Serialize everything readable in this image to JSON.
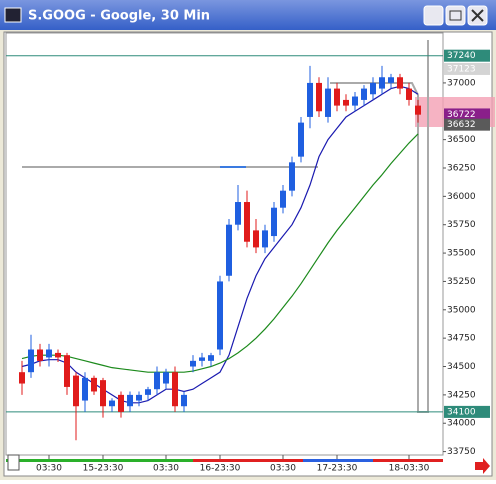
{
  "chart_data": {
    "type": "candlestick",
    "title": "S.GOOG - Google, 30 Min",
    "categories": [
      null,
      null,
      null,
      "03:30",
      null,
      null,
      null,
      null,
      null,
      "15-23:30",
      null,
      null,
      null,
      null,
      null,
      null,
      "03:30",
      null,
      null,
      null,
      null,
      null,
      "16-23:30",
      null,
      null,
      null,
      null,
      null,
      null,
      "03:30",
      null,
      null,
      null,
      null,
      null,
      "17-23:30",
      null,
      null,
      null,
      null,
      null,
      null,
      null,
      "18-03:30",
      null
    ],
    "open": [
      34450,
      34450,
      34650,
      34580,
      34620,
      34600,
      34420,
      34200,
      34400,
      34380,
      34150,
      34250,
      34150,
      34200,
      34250,
      34300,
      34350,
      34450,
      34150,
      34500,
      34550,
      34550,
      34650,
      35300,
      35750,
      35950,
      35700,
      35550,
      35650,
      35900,
      36050,
      36350,
      36700,
      37000,
      36700,
      36950,
      36850,
      36800,
      36850,
      36900,
      36950,
      37000,
      37050,
      36950,
      36800
    ],
    "high": [
      34550,
      34780,
      34700,
      34700,
      34650,
      34620,
      34450,
      34450,
      34420,
      34400,
      34220,
      34280,
      34280,
      34280,
      34320,
      34500,
      34480,
      34500,
      34280,
      34600,
      34620,
      34620,
      35300,
      35800,
      36100,
      36050,
      35800,
      35750,
      35950,
      36100,
      36350,
      36700,
      37150,
      37050,
      37050,
      37000,
      36900,
      36920,
      36980,
      37050,
      37150,
      37080,
      37080,
      37000,
      36850
    ],
    "low": [
      34250,
      34400,
      34500,
      34500,
      34540,
      34250,
      33850,
      34100,
      34250,
      34050,
      34100,
      34050,
      34100,
      34150,
      34200,
      34250,
      34300,
      34100,
      34100,
      34450,
      34500,
      34500,
      34600,
      35250,
      35700,
      35550,
      35500,
      35500,
      35600,
      35850,
      36000,
      36300,
      36600,
      36700,
      36650,
      36750,
      36750,
      36750,
      36800,
      36850,
      36900,
      36950,
      36900,
      36800,
      36650
    ],
    "close": [
      34350,
      34650,
      34550,
      34650,
      34580,
      34320,
      34150,
      34400,
      34280,
      34150,
      34200,
      34100,
      34250,
      34250,
      34300,
      34450,
      34450,
      34150,
      34250,
      34550,
      34580,
      34600,
      35250,
      35750,
      35950,
      35600,
      35550,
      35700,
      35900,
      36050,
      36300,
      36650,
      37000,
      36750,
      36950,
      36800,
      36800,
      36880,
      36950,
      37000,
      37050,
      37050,
      36950,
      36850,
      36720
    ],
    "up_color": "#1f5fe0",
    "down_color": "#e01b1b",
    "overlays": [
      {
        "color": "#1a1ab0",
        "values": [
          34500,
          34520,
          34550,
          34560,
          34560,
          34530,
          34450,
          34400,
          34350,
          34300,
          34250,
          34200,
          34180,
          34180,
          34200,
          34250,
          34300,
          34300,
          34280,
          34300,
          34350,
          34400,
          34450,
          34600,
          34850,
          35100,
          35300,
          35450,
          35550,
          35650,
          35750,
          35900,
          36100,
          36350,
          36500,
          36600,
          36700,
          36750,
          36800,
          36850,
          36900,
          36950,
          36970,
          36950,
          36900
        ]
      },
      {
        "color": "#1c8a1c",
        "values": [
          34570,
          34590,
          34600,
          34600,
          34600,
          34590,
          34570,
          34550,
          34530,
          34510,
          34490,
          34480,
          34470,
          34460,
          34450,
          34450,
          34450,
          34450,
          34450,
          34460,
          34480,
          34500,
          34530,
          34570,
          34620,
          34680,
          34750,
          34830,
          34920,
          35020,
          35120,
          35230,
          35350,
          35470,
          35590,
          35700,
          35800,
          35900,
          36000,
          36100,
          36190,
          36290,
          36380,
          36470,
          36550
        ]
      }
    ],
    "levels": [
      {
        "value": 37240,
        "color": "#2e8b7a"
      },
      {
        "value": 34100,
        "color": "#2e8b7a"
      }
    ],
    "price_markers": [
      {
        "value": 37123,
        "color": "#d4d4d4"
      },
      {
        "value": 36722,
        "color": "#8a1f8a"
      },
      {
        "value": 36632,
        "color": "#5a5a5a"
      }
    ],
    "ylim": [
      33720,
      37440
    ],
    "yticks": [
      33750,
      34000,
      34250,
      34500,
      34750,
      35000,
      35250,
      35500,
      35750,
      36000,
      36250,
      36500,
      37000
    ]
  }
}
